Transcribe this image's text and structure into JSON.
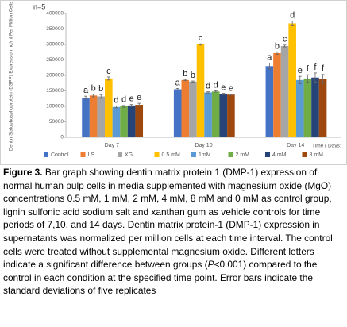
{
  "chart_data": {
    "type": "bar",
    "annotation": "n=5",
    "ylabel": "Dentin Sialophosphoprotein (DSPP) Expression  ng/ml Per Million Cells",
    "xlabel": "Time ( Days)",
    "categories": [
      "Day 7",
      "Day 10",
      "Day 14"
    ],
    "ylim": [
      0,
      400000
    ],
    "yticks": [
      0,
      50000,
      100000,
      150000,
      200000,
      250000,
      300000,
      350000,
      400000
    ],
    "grid": false,
    "legend": "bottom",
    "series": [
      {
        "name": "Control",
        "color": "#4472c4",
        "values": [
          128000,
          155000,
          230000
        ],
        "errors": [
          5000,
          3000,
          10000
        ],
        "letters": [
          "a",
          "a",
          "a"
        ]
      },
      {
        "name": "LS",
        "color": "#ed7d31",
        "values": [
          135000,
          185000,
          272000
        ],
        "errors": [
          4000,
          2000,
          4000
        ],
        "letters": [
          "b",
          "b",
          "b"
        ]
      },
      {
        "name": "XG",
        "color": "#a5a5a5",
        "values": [
          132000,
          180000,
          295000
        ],
        "errors": [
          6000,
          2000,
          3000
        ],
        "letters": [
          "b",
          "b",
          "c"
        ]
      },
      {
        "name": "0.5 mM",
        "color": "#ffc000",
        "values": [
          190000,
          300000,
          368000
        ],
        "errors": [
          5000,
          2000,
          8000
        ],
        "letters": [
          "c",
          "c",
          "d"
        ]
      },
      {
        "name": "1mM",
        "color": "#5b9bd5",
        "values": [
          98000,
          145000,
          185000
        ],
        "errors": [
          3000,
          2000,
          12000
        ],
        "letters": [
          "d",
          "d",
          "e"
        ]
      },
      {
        "name": "2 mM",
        "color": "#70ad47",
        "values": [
          100000,
          148000,
          190000
        ],
        "errors": [
          3000,
          2000,
          12000
        ],
        "letters": [
          "d",
          "d",
          "f"
        ]
      },
      {
        "name": "4 mM",
        "color": "#264478",
        "values": [
          103000,
          140000,
          193000
        ],
        "errors": [
          3000,
          2000,
          15000
        ],
        "letters": [
          "e",
          "e",
          "f"
        ]
      },
      {
        "name": "8 mM",
        "color": "#9e480e",
        "values": [
          105000,
          138000,
          188000
        ],
        "errors": [
          5000,
          2000,
          15000
        ],
        "letters": [
          "e",
          "e",
          "f"
        ]
      }
    ]
  },
  "caption": {
    "label": "Figure 3.",
    "text_before": " Bar graph showing dentin matrix protein 1 (DMP-1) expression of normal human pulp cells in media supplemented with magnesium oxide (MgO) concentrations 0.5 mM, 1 mM, 2 mM, 4 mM, 8 mM and 0 mM as control group, lignin sulfonic acid sodium salt and xanthan gum as vehicle controls for time periods of 7,10, and 14 days. Dentin matrix protein-1 (DMP-1) expression in supernatants was normalized per million cells at each time interval. The control cells were treated without supplemental magnesium oxide. Different letters indicate a significant difference between groups (",
    "italic": "P",
    "text_after": "<0.001) compared to the control in each condition at the specified time point. Error bars indicate the standard deviations of five replicates"
  }
}
